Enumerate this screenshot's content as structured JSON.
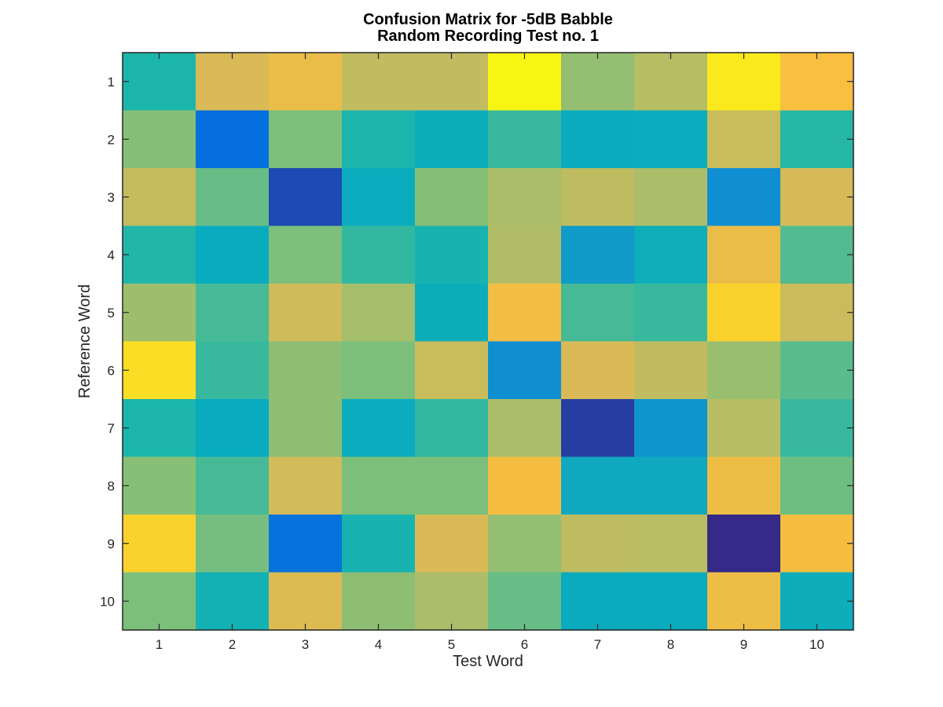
{
  "chart_data": {
    "type": "heatmap",
    "title": [
      "Confusion Matrix for -5dB Babble",
      "Random Recording Test no. 1"
    ],
    "xlabel": "Test Word",
    "ylabel": "Reference Word",
    "x_categories": [
      "1",
      "2",
      "3",
      "4",
      "5",
      "6",
      "7",
      "8",
      "9",
      "10"
    ],
    "y_categories": [
      "1",
      "2",
      "3",
      "4",
      "5",
      "6",
      "7",
      "8",
      "9",
      "10"
    ],
    "colormap": "parula",
    "colorbar": false,
    "grid": false,
    "values": [
      [
        0.45,
        0.8,
        0.85,
        0.73,
        0.73,
        0.99,
        0.64,
        0.7,
        0.97,
        0.89
      ],
      [
        0.62,
        0.12,
        0.6,
        0.45,
        0.33,
        0.5,
        0.36,
        0.35,
        0.75,
        0.47
      ],
      [
        0.74,
        0.57,
        0.05,
        0.35,
        0.62,
        0.68,
        0.72,
        0.68,
        0.2,
        0.79
      ],
      [
        0.46,
        0.37,
        0.6,
        0.49,
        0.44,
        0.69,
        0.24,
        0.31,
        0.85,
        0.54
      ],
      [
        0.66,
        0.52,
        0.77,
        0.67,
        0.33,
        0.87,
        0.52,
        0.5,
        0.93,
        0.76
      ],
      [
        0.95,
        0.5,
        0.63,
        0.6,
        0.75,
        0.2,
        0.8,
        0.73,
        0.65,
        0.55
      ],
      [
        0.45,
        0.37,
        0.63,
        0.35,
        0.49,
        0.68,
        0.03,
        0.22,
        0.7,
        0.5
      ],
      [
        0.62,
        0.52,
        0.78,
        0.6,
        0.6,
        0.88,
        0.28,
        0.28,
        0.86,
        0.58
      ],
      [
        0.93,
        0.59,
        0.13,
        0.44,
        0.8,
        0.64,
        0.72,
        0.71,
        0.0,
        0.88
      ],
      [
        0.6,
        0.43,
        0.81,
        0.63,
        0.68,
        0.57,
        0.41,
        0.41,
        0.86,
        0.32
      ]
    ]
  }
}
